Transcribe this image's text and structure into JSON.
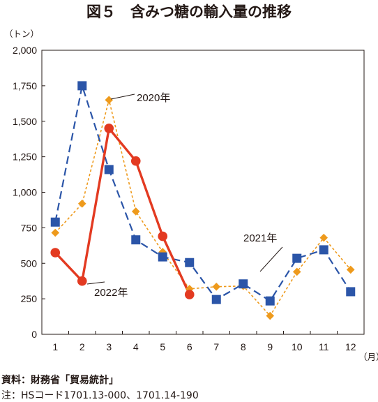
{
  "chart_data": {
    "type": "line",
    "title": "図５　含みつ糖の輸入量の推移",
    "y_unit": "（トン）",
    "x_unit": "（月）",
    "categories": [
      "1",
      "2",
      "3",
      "4",
      "5",
      "6",
      "7",
      "8",
      "9",
      "10",
      "11",
      "12"
    ],
    "ylim": [
      0,
      2000
    ],
    "y_ticks": [
      0,
      250,
      500,
      750,
      1000,
      1250,
      1500,
      1750,
      2000
    ],
    "y_tick_labels": [
      "0",
      "250",
      "500",
      "750",
      "1,000",
      "1,250",
      "1,500",
      "1,750",
      "2,000"
    ],
    "grid": false,
    "legend": "none (series labeled inline)",
    "series": [
      {
        "name": "2020年",
        "color": "#ee9a1c",
        "line_style": "dotted",
        "marker": "diamond",
        "values": [
          715,
          920,
          1650,
          865,
          580,
          320,
          335,
          340,
          130,
          440,
          680,
          455
        ]
      },
      {
        "name": "2021年",
        "color": "#2b55a8",
        "line_style": "dashed",
        "marker": "square",
        "values": [
          790,
          1750,
          1160,
          665,
          545,
          505,
          245,
          355,
          235,
          535,
          595,
          300
        ]
      },
      {
        "name": "2022年",
        "color": "#e33a21",
        "line_style": "solid",
        "marker": "circle",
        "values": [
          575,
          375,
          1450,
          1220,
          690,
          280,
          null,
          null,
          null,
          null,
          null,
          null
        ]
      }
    ]
  },
  "footnotes": {
    "source": "資料：財務省「貿易統計」",
    "note": "注：HSコード1701.13-000、1701.14-190"
  }
}
